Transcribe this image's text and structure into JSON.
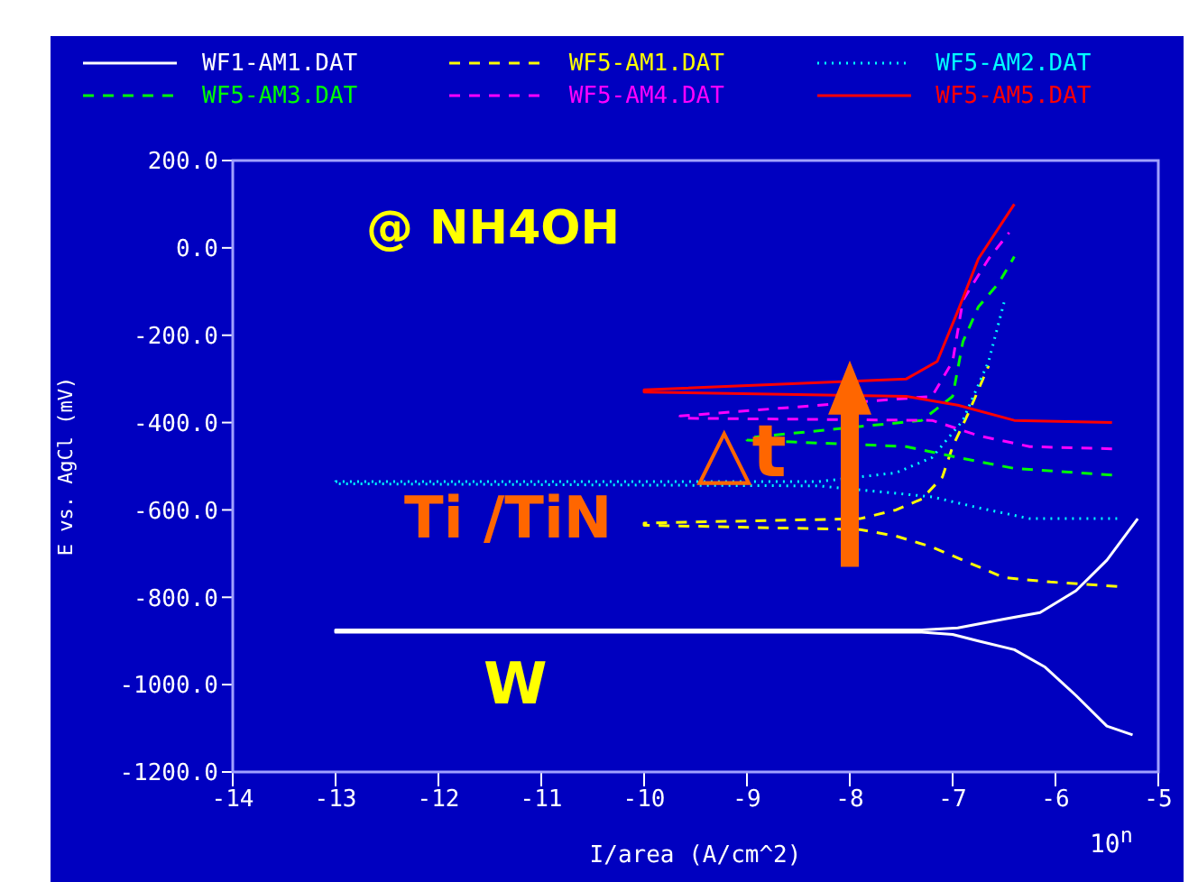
{
  "chart_data": {
    "type": "line",
    "xlabel": "I/area (A/cm^2)",
    "ylabel": "E vs. AgCl (mV)",
    "annotations": [
      "@ NH4OH",
      "Ti /TiN",
      "△t",
      "W",
      "10$^{n}$"
    ],
    "xlim": [
      -14,
      -5
    ],
    "xticks": [
      -14,
      -13,
      -12,
      -11,
      -10,
      -9,
      -8,
      -7,
      -6,
      -5
    ],
    "ylim": [
      -1200,
      200
    ],
    "yticks": [
      {
        "value": -1200,
        "label": "-1200.0"
      },
      {
        "value": -1000,
        "label": "-1000.0"
      },
      {
        "value": -800,
        "label": "-800.0"
      },
      {
        "value": -600,
        "label": "-600.0"
      },
      {
        "value": -400,
        "label": "-400.0"
      },
      {
        "value": -200,
        "label": "-200.0"
      },
      {
        "value": 0,
        "label": "0.0"
      },
      {
        "value": 200,
        "label": "200.0"
      }
    ],
    "legend": "top",
    "marker": "none",
    "series": [
      {
        "name": "WF1-AM1.DAT",
        "color": "#ffffff",
        "line_style": "solid",
        "x": [
          -5.25,
          -5.5,
          -5.8,
          -6.1,
          -6.4,
          -6.75,
          -7.0,
          -7.3,
          -13.0,
          -13.0,
          -7.3,
          -6.95,
          -6.5,
          -6.15,
          -5.8,
          -5.5,
          -5.2
        ],
        "values": [
          -1115,
          -1095,
          -1025,
          -960,
          -920,
          -900,
          -885,
          -880,
          -880,
          -875,
          -875,
          -870,
          -850,
          -835,
          -785,
          -715,
          -620
        ]
      },
      {
        "name": "WF5-AM1.DAT",
        "color": "#ffff00",
        "line_style": "dashed",
        "x": [
          -5.4,
          -6.05,
          -6.5,
          -6.85,
          -7.2,
          -7.55,
          -7.9,
          -10.0,
          -10.0,
          -7.9,
          -7.55,
          -7.3,
          -7.1,
          -7.0,
          -6.85,
          -6.65
        ],
        "values": [
          -775,
          -765,
          -755,
          -720,
          -685,
          -660,
          -645,
          -635,
          -630,
          -620,
          -600,
          -575,
          -525,
          -455,
          -380,
          -270
        ]
      },
      {
        "name": "WF5-AM2.DAT",
        "color": "#00ffff",
        "line_style": "dotted",
        "x": [
          -5.4,
          -6.25,
          -6.75,
          -7.2,
          -8.3,
          -13.0,
          -13.0,
          -8.3,
          -7.55,
          -7.2,
          -6.9,
          -6.65,
          -6.5
        ],
        "values": [
          -620,
          -620,
          -595,
          -570,
          -545,
          -540,
          -535,
          -535,
          -515,
          -480,
          -395,
          -260,
          -125
        ]
      },
      {
        "name": "WF5-AM3.DAT",
        "color": "#00ff00",
        "line_style": "dashed",
        "x": [
          -5.45,
          -6.4,
          -6.95,
          -7.45,
          -9.0,
          -9.0,
          -7.3,
          -7.0,
          -6.9,
          -6.75,
          -6.55,
          -6.4
        ],
        "values": [
          -520,
          -505,
          -480,
          -455,
          -440,
          -435,
          -395,
          -340,
          -215,
          -135,
          -80,
          -20
        ]
      },
      {
        "name": "WF5-AM4.DAT",
        "color": "#ff00ff",
        "line_style": "dashed",
        "x": [
          -5.45,
          -6.25,
          -6.75,
          -7.2,
          -9.65,
          -9.65,
          -7.2,
          -7.0,
          -6.9,
          -6.65,
          -6.45
        ],
        "values": [
          -460,
          -455,
          -430,
          -395,
          -390,
          -385,
          -340,
          -260,
          -120,
          -25,
          35
        ]
      },
      {
        "name": "WF5-AM5.DAT",
        "color": "#ff0000",
        "line_style": "solid",
        "x": [
          -5.45,
          -6.4,
          -6.95,
          -7.45,
          -10.0,
          -10.0,
          -7.45,
          -7.15,
          -6.95,
          -6.75,
          -6.4
        ],
        "values": [
          -400,
          -395,
          -360,
          -340,
          -330,
          -325,
          -300,
          -260,
          -145,
          -25,
          100
        ]
      }
    ]
  }
}
